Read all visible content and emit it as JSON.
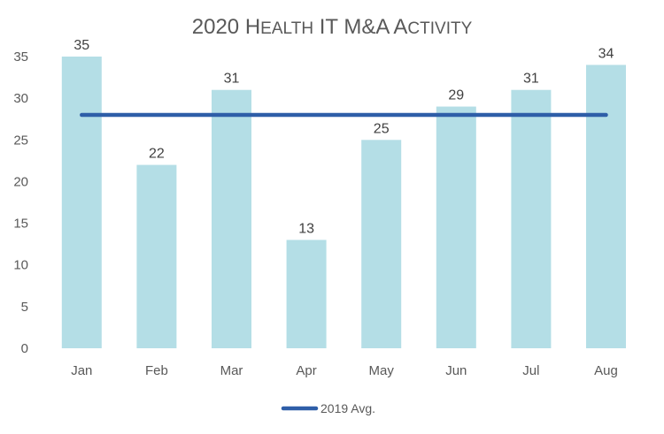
{
  "chart_data": {
    "type": "bar",
    "title": "2020 Health IT M&A Activity",
    "categories": [
      "Jan",
      "Feb",
      "Mar",
      "Apr",
      "May",
      "Jun",
      "Jul",
      "Aug"
    ],
    "series": [
      {
        "type": "bar",
        "values": [
          35,
          22,
          31,
          13,
          25,
          29,
          31,
          34
        ],
        "color": "#b4dee6",
        "data_labels": true
      },
      {
        "name": "2019 Avg.",
        "type": "line",
        "values": [
          28,
          28,
          28,
          28,
          28,
          28,
          28,
          28
        ],
        "color": "#2e5ea8"
      }
    ],
    "xlabel": "",
    "ylabel": "",
    "ylim": [
      0,
      35
    ],
    "yticks": [
      0,
      5,
      10,
      15,
      20,
      25,
      30,
      35
    ],
    "grid": false,
    "legend": "bottom"
  }
}
